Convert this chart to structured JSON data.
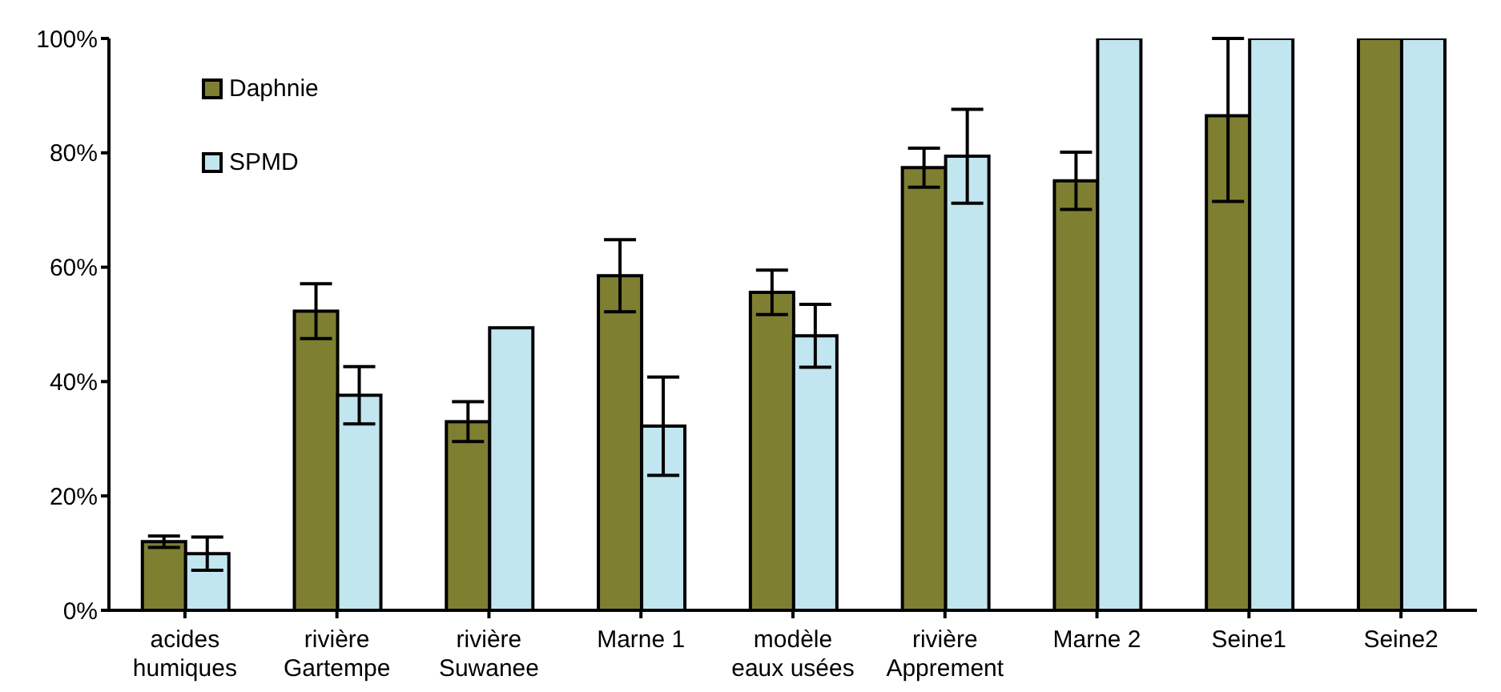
{
  "chart_data": {
    "type": "bar",
    "categories": [
      "acides\nhumiques",
      "rivière\nGartempe",
      "rivière\nSuwanee",
      "Marne 1",
      "modèle\neaux usées",
      "rivière\nApprement",
      "Marne 2",
      "Seine1",
      "Seine2"
    ],
    "series": [
      {
        "name": "Daphnie",
        "color": "#7f7f32",
        "values": [
          12,
          52.3,
          33,
          58.5,
          55.6,
          77.4,
          75.1,
          86.5,
          100
        ],
        "errors": [
          1,
          4.8,
          3.5,
          6.3,
          3.9,
          3.4,
          5,
          [
            71.5,
            100
          ],
          null
        ]
      },
      {
        "name": "SPMD",
        "color": "#c2e6ef",
        "values": [
          9.9,
          37.6,
          49.4,
          32.2,
          48,
          79.4,
          100,
          100,
          100
        ],
        "errors": [
          2.9,
          5,
          null,
          8.6,
          5.5,
          8.2,
          null,
          null,
          null
        ]
      }
    ],
    "ylim": [
      0,
      100
    ],
    "yticks": [
      {
        "value": 0,
        "label": "0%"
      },
      {
        "value": 20,
        "label": "20%"
      },
      {
        "value": 40,
        "label": "40%"
      },
      {
        "value": 60,
        "label": "60%"
      },
      {
        "value": 80,
        "label": "80%"
      },
      {
        "value": 100,
        "label": "100%"
      }
    ],
    "grid": false,
    "legend": "top left"
  }
}
